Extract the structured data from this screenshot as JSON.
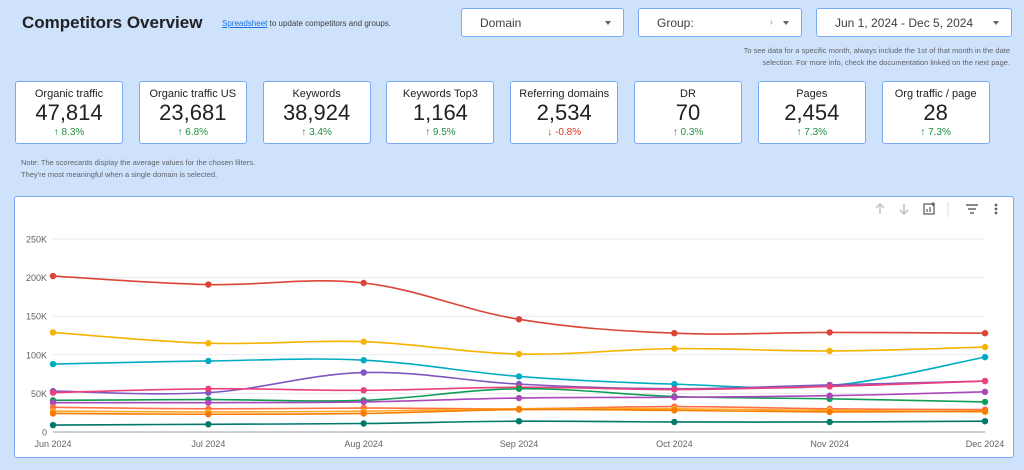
{
  "header": {
    "title": "Competitors Overview",
    "sheet_link": "Spreadsheet",
    "sheet_note": " to update competitors and groups."
  },
  "filters": {
    "domain_label": "Domain",
    "group_label": "Group:",
    "group_value": "›",
    "date_range": "Jun 1, 2024 - Dec 5, 2024",
    "date_note": "To see data for a specific month, always include the 1st of that month in the date selection. For more info, check the documentation linked on the next page."
  },
  "scorecards": [
    {
      "label": "Organic traffic",
      "value": "47,814",
      "delta": "8.3%",
      "dir": "up"
    },
    {
      "label": "Organic traffic US",
      "value": "23,681",
      "delta": "6.8%",
      "dir": "up"
    },
    {
      "label": "Keywords",
      "value": "38,924",
      "delta": "3.4%",
      "dir": "up"
    },
    {
      "label": "Keywords Top3",
      "value": "1,164",
      "delta": "9.5%",
      "dir": "up"
    },
    {
      "label": "Referring domains",
      "value": "2,534",
      "delta": "-0.8%",
      "dir": "down"
    },
    {
      "label": "DR",
      "value": "70",
      "delta": "0.3%",
      "dir": "up"
    },
    {
      "label": "Pages",
      "value": "2,454",
      "delta": "7.3%",
      "dir": "up"
    },
    {
      "label": "Org traffic / page",
      "value": "28",
      "delta": "7.3%",
      "dir": "up"
    }
  ],
  "scorecard_note": "Note: The scorecards display the average values for the chosen filters. They're most meaningful when a single domain is selected.",
  "colors": {
    "up": "#1e8e3e",
    "down": "#d93025",
    "border": "#7baaf7",
    "background": "#cfe2fb"
  },
  "toolbar_icons": [
    "arrow-up-icon",
    "arrow-down-icon",
    "export-chart-icon",
    "filter-icon",
    "more-vert-icon"
  ],
  "chart_data": {
    "type": "line",
    "title": "",
    "xlabel": "",
    "ylabel": "",
    "categories": [
      "Jun 2024",
      "Jul 2024",
      "Aug 2024",
      "Sep 2024",
      "Oct 2024",
      "Nov 2024",
      "Dec 2024"
    ],
    "yticks": [
      "0",
      "50K",
      "100K",
      "150K",
      "200K",
      "250K"
    ],
    "ylim": [
      0,
      250000
    ],
    "grid": true,
    "legend": "none",
    "series": [
      {
        "color": "#db4437",
        "values": [
          202000,
          191000,
          193000,
          146000,
          128000,
          129000,
          128000
        ]
      },
      {
        "color": "#f4b400",
        "values": [
          129000,
          115000,
          117000,
          101000,
          108000,
          105000,
          110000
        ]
      },
      {
        "color": "#00acc1",
        "values": [
          88000,
          92000,
          93000,
          72000,
          62000,
          60000,
          97000
        ]
      },
      {
        "color": "#7e57c2",
        "values": [
          53000,
          51000,
          77000,
          62000,
          56000,
          61000,
          66000
        ]
      },
      {
        "color": "#ec407a",
        "values": [
          51000,
          56000,
          54000,
          58000,
          55000,
          59000,
          66000
        ]
      },
      {
        "color": "#0f9d58",
        "values": [
          41000,
          42000,
          41000,
          56000,
          46000,
          43000,
          39000
        ]
      },
      {
        "color": "#ab47bc",
        "values": [
          38000,
          38000,
          39000,
          44000,
          45000,
          47000,
          52000
        ]
      },
      {
        "color": "#ff7043",
        "values": [
          32000,
          30000,
          31000,
          30000,
          33000,
          30000,
          29000
        ]
      },
      {
        "color": "#ffa726",
        "values": [
          27000,
          26000,
          27000,
          30000,
          30000,
          28000,
          26000
        ]
      },
      {
        "color": "#f57c00",
        "values": [
          24000,
          23000,
          24000,
          29000,
          28000,
          26000,
          27000
        ]
      },
      {
        "color": "#00796b",
        "values": [
          9000,
          10000,
          11000,
          14000,
          13000,
          13000,
          14000
        ]
      }
    ]
  }
}
